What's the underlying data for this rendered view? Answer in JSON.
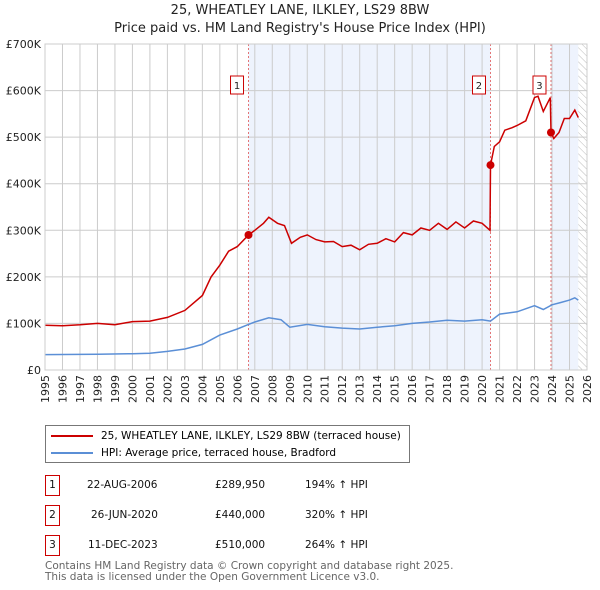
{
  "title": "25, WHEATLEY LANE, ILKLEY, LS29 8BW",
  "subtitle": "Price paid vs. HM Land Registry's House Price Index (HPI)",
  "chart_data": {
    "type": "line",
    "xlim": [
      1995,
      2026
    ],
    "ylim": [
      0,
      700000
    ],
    "yticks": [
      0,
      100000,
      200000,
      300000,
      400000,
      500000,
      600000,
      700000
    ],
    "ytick_labels": [
      "£0",
      "£100K",
      "£200K",
      "£300K",
      "£400K",
      "£500K",
      "£600K",
      "£700K"
    ],
    "xticks": [
      "1995",
      "1996",
      "1997",
      "1998",
      "1999",
      "2000",
      "2001",
      "2002",
      "2003",
      "2004",
      "2005",
      "2006",
      "2007",
      "2008",
      "2009",
      "2010",
      "2011",
      "2012",
      "2013",
      "2014",
      "2015",
      "2016",
      "2017",
      "2018",
      "2019",
      "2020",
      "2021",
      "2022",
      "2023",
      "2024",
      "2025",
      "2026"
    ],
    "grid": true,
    "series": [
      {
        "name": "25, WHEATLEY LANE, ILKLEY, LS29 8BW (terraced house)",
        "color": "#cc0000",
        "x": [
          1995,
          1996,
          1997,
          1998,
          1999,
          2000,
          2001,
          2002,
          2003,
          2004,
          2004.5,
          2005,
          2005.5,
          2006,
          2006.64,
          2007,
          2007.5,
          2007.8,
          2008.3,
          2008.7,
          2009.1,
          2009.6,
          2010,
          2010.5,
          2011,
          2011.5,
          2012,
          2012.5,
          2013,
          2013.5,
          2014,
          2014.5,
          2015,
          2015.5,
          2016,
          2016.5,
          2017,
          2017.5,
          2018,
          2018.5,
          2019,
          2019.5,
          2020,
          2020.45,
          2020.48,
          2020.7,
          2021,
          2021.3,
          2021.7,
          2022,
          2022.5,
          2023,
          2023.2,
          2023.5,
          2023.9,
          2023.94,
          2024.1,
          2024.4,
          2024.7,
          2025,
          2025.3,
          2025.5
        ],
        "y": [
          96000,
          95000,
          97000,
          100000,
          97000,
          104000,
          105000,
          113000,
          128000,
          160000,
          200000,
          225000,
          255000,
          265000,
          289950,
          300000,
          315000,
          328000,
          315000,
          310000,
          272000,
          285000,
          290000,
          280000,
          275000,
          276000,
          265000,
          268000,
          258000,
          270000,
          272000,
          282000,
          275000,
          295000,
          290000,
          305000,
          300000,
          315000,
          302000,
          318000,
          305000,
          320000,
          315000,
          300000,
          440000,
          480000,
          490000,
          515000,
          520000,
          525000,
          535000,
          585000,
          588000,
          555000,
          585000,
          510000,
          497000,
          510000,
          540000,
          540000,
          558000,
          542000
        ]
      },
      {
        "name": "HPI: Average price, terraced house, Bradford",
        "color": "#5b8fd6",
        "x": [
          1995,
          1998,
          2000,
          2001,
          2002,
          2003,
          2004,
          2005,
          2006,
          2006.64,
          2007,
          2007.8,
          2008.5,
          2009,
          2010,
          2011,
          2012,
          2013,
          2014,
          2015,
          2016,
          2017,
          2018,
          2019,
          2020,
          2020.48,
          2021,
          2022,
          2023,
          2023.5,
          2024,
          2024.5,
          2025,
          2025.3,
          2025.5
        ],
        "y": [
          33000,
          34000,
          35000,
          36000,
          40000,
          45000,
          55000,
          75000,
          88000,
          98000,
          103000,
          112000,
          108000,
          92000,
          98000,
          93000,
          90000,
          88000,
          92000,
          95000,
          100000,
          103000,
          107000,
          105000,
          108000,
          105000,
          120000,
          125000,
          138000,
          130000,
          140000,
          145000,
          150000,
          155000,
          150000
        ]
      }
    ],
    "sales": [
      {
        "label": "1",
        "x": 2006.64,
        "y": 289950
      },
      {
        "label": "2",
        "x": 2020.48,
        "y": 440000
      },
      {
        "label": "3",
        "x": 2023.94,
        "y": 510000
      }
    ],
    "shaded_ranges": [
      [
        2006.64,
        2020.48
      ],
      [
        2023.94,
        2025.5
      ]
    ],
    "hatched_range": [
      2025.5,
      2026
    ]
  },
  "legend": {
    "items": [
      {
        "label": "25, WHEATLEY LANE, ILKLEY, LS29 8BW (terraced house)",
        "color": "#cc0000"
      },
      {
        "label": "HPI: Average price, terraced house, Bradford",
        "color": "#5b8fd6"
      }
    ]
  },
  "transactions": [
    {
      "num": "1",
      "date": "22-AUG-2006",
      "price": "£289,950",
      "hpi": "194% ↑ HPI"
    },
    {
      "num": "2",
      "date": "26-JUN-2020",
      "price": "£440,000",
      "hpi": "320% ↑ HPI"
    },
    {
      "num": "3",
      "date": "11-DEC-2023",
      "price": "£510,000",
      "hpi": "264% ↑ HPI"
    }
  ],
  "footer": {
    "line1": "Contains HM Land Registry data © Crown copyright and database right 2025.",
    "line2": "This data is licensed under the Open Government Licence v3.0."
  }
}
